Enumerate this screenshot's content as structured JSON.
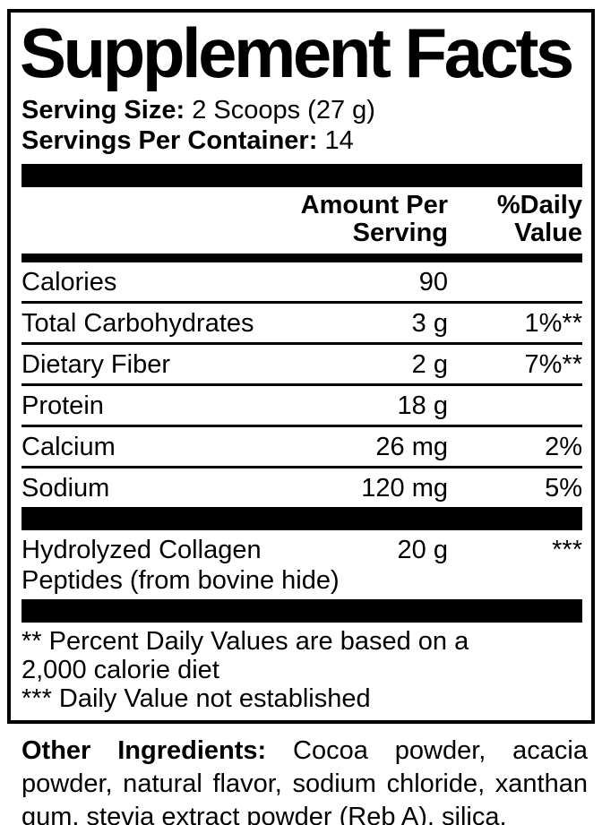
{
  "panel": {
    "title": "Supplement Facts",
    "serving_size_label": "Serving Size:",
    "serving_size_value": "2 Scoops (27 g)",
    "servings_per_container_label": "Servings Per Container:",
    "servings_per_container_value": "14",
    "columns": {
      "amount_line1": "Amount Per",
      "amount_line2": "Serving",
      "dv_line1": "%Daily",
      "dv_line2": "Value"
    },
    "rows": [
      {
        "name": "Calories",
        "amount": "90",
        "dv": ""
      },
      {
        "name": "Total Carbohydrates",
        "amount": "3 g",
        "dv": "1%**"
      },
      {
        "name": "Dietary Fiber",
        "amount": "2 g",
        "dv": "7%**"
      },
      {
        "name": "Protein",
        "amount": "18 g",
        "dv": ""
      },
      {
        "name": "Calcium",
        "amount": "26 mg",
        "dv": "2%"
      },
      {
        "name": "Sodium",
        "amount": "120 mg",
        "dv": "5%"
      }
    ],
    "collagen": {
      "name_line1": "Hydrolyzed Collagen",
      "name_line2": "Peptides (from bovine hide)",
      "amount": "20 g",
      "dv": "***"
    },
    "footnote_lines": [
      "** Percent Daily Values are based on a",
      "2,000 calorie diet",
      "*** Daily Value not established"
    ]
  },
  "other_ingredients": {
    "label": "Other Ingredients:",
    "text": "Cocoa powder, acacia powder, natural flavor, sodium chloride, xanthan gum, stevia extract powder (Reb A), silica."
  },
  "colors": {
    "ink": "#000000",
    "background": "#ffffff"
  }
}
